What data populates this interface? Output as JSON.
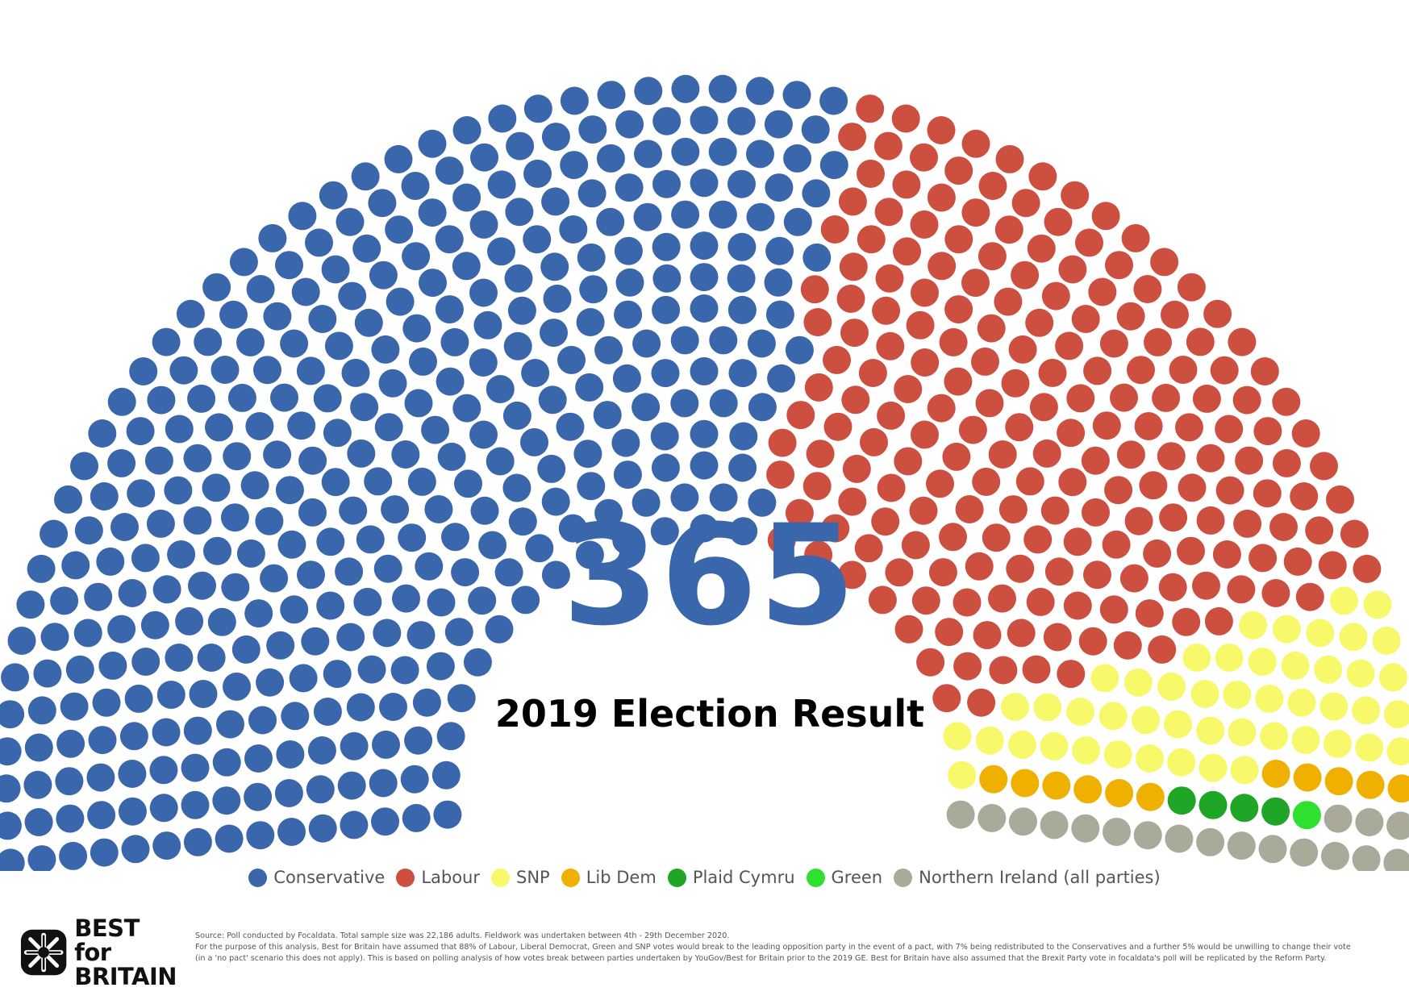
{
  "chart_data": {
    "type": "parliament",
    "title": "365",
    "subtitle": "2019 Election Result",
    "total_seats": 650,
    "series": [
      {
        "name": "Conservative",
        "value": 365,
        "color": "#3a66ab"
      },
      {
        "name": "Labour",
        "value": 202,
        "color": "#cd4f40"
      },
      {
        "name": "SNP",
        "value": 48,
        "color": "#f8f86b"
      },
      {
        "name": "Lib Dem",
        "value": 11,
        "color": "#f0b000"
      },
      {
        "name": "Plaid Cymru",
        "value": 4,
        "color": "#1fa626"
      },
      {
        "name": "Green",
        "value": 1,
        "color": "#2fe02f"
      },
      {
        "name": "Northern Ireland (all parties)",
        "value": 18,
        "color": "#a9aa99"
      }
    ]
  },
  "logo": {
    "line1": "BEST for",
    "line2": "BRITAIN"
  },
  "footnote": [
    "Source: Poll conducted by Focaldata. Total sample size was 22,186 adults. Fieldwork was undertaken between 4th - 29th December 2020.",
    "For the purpose of this analysis, Best for Britain have assumed that 88% of Labour, Liberal Democrat, Green and SNP votes would break to the leading opposition party in the event of a pact, with 7% being redistributed to the Conservatives and a further 5% would be unwilling to change their vote",
    "(in a 'no pact' scenario this does not apply). This is based on polling analysis of how votes break between parties undertaken by YouGov/Best for Britain prior to the 2019 GE. Best for Britain have also assumed that the Brexit Party vote in focaldata's poll will be replicated by the Reform Party."
  ]
}
